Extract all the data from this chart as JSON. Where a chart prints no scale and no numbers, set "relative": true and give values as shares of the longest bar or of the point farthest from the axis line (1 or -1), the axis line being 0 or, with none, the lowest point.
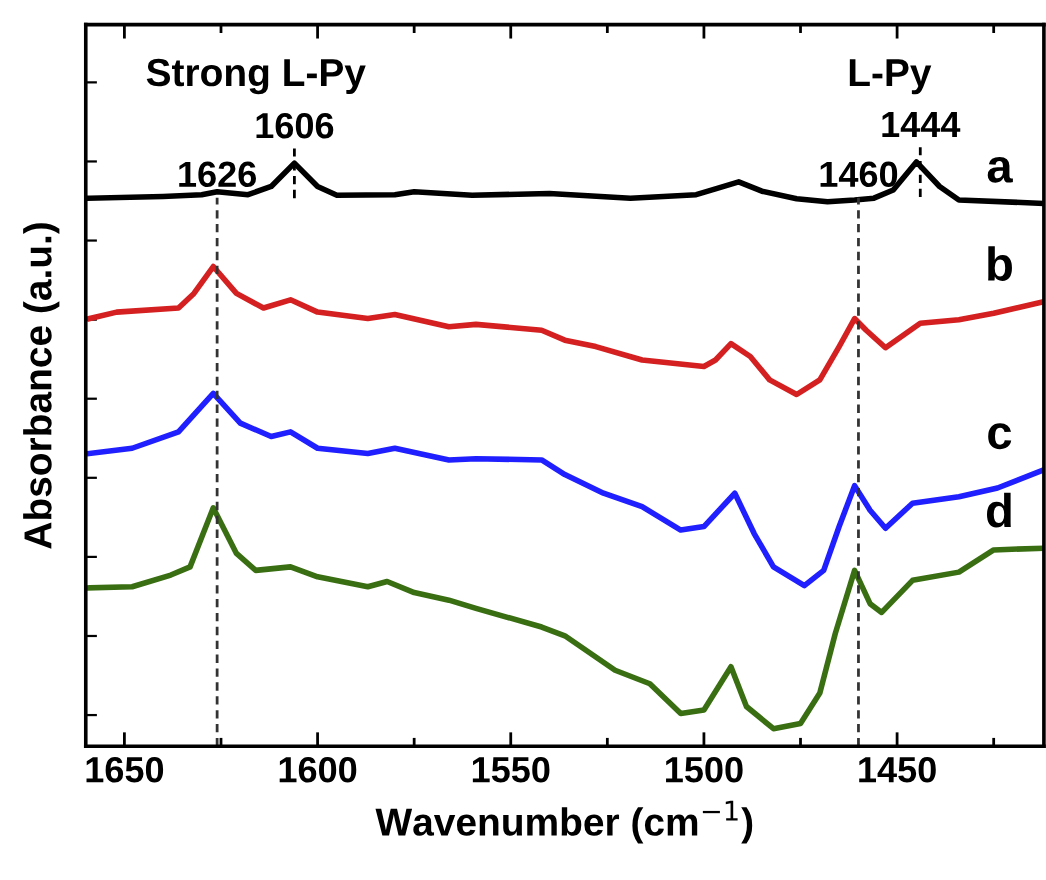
{
  "chart_data": {
    "type": "line",
    "relative": true,
    "xlabel": "Wavenumber (cm$^{−1}$)",
    "ylabel": "Absorbance (a.u.)",
    "xlim": [
      1660,
      1412
    ],
    "xticks": [
      1650,
      1600,
      1550,
      1500,
      1450
    ],
    "grid": false,
    "line_style": "solid",
    "marker": "none",
    "series": [
      {
        "name": "a",
        "color": "#000000",
        "x": [
          1659,
          1640,
          1630,
          1626,
          1618,
          1612,
          1606,
          1600,
          1595,
          1580,
          1575,
          1560,
          1540,
          1519,
          1502,
          1497,
          1491,
          1485,
          1476,
          1468,
          1461,
          1456,
          1451,
          1445,
          1439,
          1434,
          1412
        ],
        "values": [
          0.938,
          0.941,
          0.944,
          0.949,
          0.944,
          0.958,
          0.998,
          0.958,
          0.943,
          0.944,
          0.949,
          0.943,
          0.946,
          0.938,
          0.944,
          0.954,
          0.966,
          0.95,
          0.937,
          0.932,
          0.935,
          0.938,
          0.952,
          1.0,
          0.958,
          0.935,
          0.929
        ]
      },
      {
        "name": "b",
        "color": "#d42020",
        "x": [
          1659,
          1652,
          1636,
          1632,
          1627,
          1621,
          1614,
          1607,
          1600,
          1587,
          1580,
          1566,
          1559,
          1542,
          1536,
          1528,
          1516,
          1500,
          1497,
          1493,
          1488,
          1483,
          1476,
          1470,
          1465,
          1461,
          1458,
          1453,
          1444,
          1434,
          1425,
          1412
        ],
        "values": [
          0.732,
          0.743,
          0.75,
          0.775,
          0.821,
          0.775,
          0.75,
          0.764,
          0.743,
          0.732,
          0.739,
          0.718,
          0.722,
          0.712,
          0.695,
          0.684,
          0.661,
          0.65,
          0.661,
          0.689,
          0.667,
          0.627,
          0.602,
          0.627,
          0.684,
          0.732,
          0.712,
          0.682,
          0.724,
          0.73,
          0.741,
          0.761
        ]
      },
      {
        "name": "c",
        "color": "#1f1fff",
        "x": [
          1659,
          1648,
          1636,
          1627,
          1620,
          1612,
          1607,
          1600,
          1587,
          1580,
          1566,
          1559,
          1542,
          1536,
          1526,
          1516,
          1506,
          1500,
          1492,
          1487,
          1482,
          1474,
          1469,
          1465,
          1461,
          1457,
          1453,
          1446,
          1434,
          1424,
          1412
        ],
        "values": [
          0.501,
          0.51,
          0.538,
          0.604,
          0.553,
          0.53,
          0.538,
          0.51,
          0.501,
          0.51,
          0.49,
          0.492,
          0.49,
          0.465,
          0.433,
          0.41,
          0.37,
          0.376,
          0.433,
          0.364,
          0.307,
          0.275,
          0.301,
          0.376,
          0.446,
          0.404,
          0.373,
          0.416,
          0.427,
          0.442,
          0.473
        ]
      },
      {
        "name": "d",
        "color": "#3a6e12",
        "x": [
          1659,
          1648,
          1638,
          1633,
          1627,
          1621,
          1616,
          1607,
          1600,
          1587,
          1582,
          1575,
          1566,
          1559,
          1542,
          1536,
          1523,
          1514,
          1506,
          1500,
          1493,
          1489,
          1482,
          1475,
          1470,
          1466,
          1461,
          1457,
          1454,
          1446,
          1434,
          1425,
          1412
        ],
        "values": [
          0.271,
          0.273,
          0.293,
          0.307,
          0.408,
          0.33,
          0.301,
          0.307,
          0.29,
          0.273,
          0.282,
          0.263,
          0.25,
          0.236,
          0.204,
          0.189,
          0.13,
          0.107,
          0.056,
          0.062,
          0.136,
          0.068,
          0.03,
          0.039,
          0.091,
          0.193,
          0.301,
          0.244,
          0.229,
          0.284,
          0.298,
          0.336,
          0.339
        ]
      }
    ],
    "ref_lines": [
      {
        "axis": "x",
        "value": 1626,
        "label": "1626",
        "line_style": "dashed",
        "color": "#333333"
      },
      {
        "axis": "x",
        "value": 1460,
        "label": "1460",
        "line_style": "dashed",
        "color": "#333333"
      }
    ],
    "annotations": [
      {
        "text": "1606",
        "x": 1606,
        "y": 0.998
      },
      {
        "text": "1444",
        "x": 1444,
        "y": 1.0
      },
      "Strong L-Py",
      "L-Py"
    ]
  }
}
